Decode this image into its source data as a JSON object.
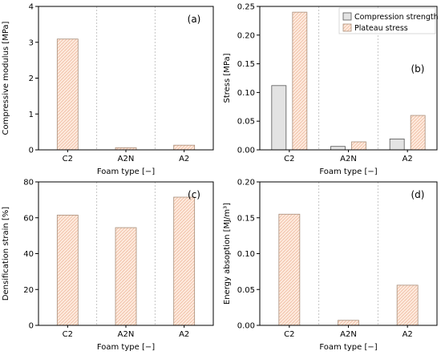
{
  "colors": {
    "compression": "#e3e3e3",
    "plateau": "#fbe3d4",
    "plateau_edge": "#a88e7a",
    "separator": "#b8b8b8"
  },
  "chart_data": [
    {
      "type": "bar",
      "panel_label": "(a)",
      "categories": [
        "C2",
        "A2N",
        "A2"
      ],
      "series": [
        {
          "name": "",
          "values": [
            3.09,
            0.06,
            0.13
          ],
          "style": "plateau"
        }
      ],
      "xlabel": "Foam type [−]",
      "ylabel": "Compressive modulus [MPa]",
      "ylim": [
        0,
        4
      ],
      "yticks": [
        "0",
        "1",
        "2",
        "3",
        "4"
      ],
      "legend": null
    },
    {
      "type": "bar",
      "panel_label": "(b)",
      "categories": [
        "C2",
        "A2N",
        "A2"
      ],
      "series": [
        {
          "name": "Compression strength",
          "values": [
            0.112,
            0.006,
            0.019
          ],
          "style": "compression"
        },
        {
          "name": "Plateau stress",
          "values": [
            0.24,
            0.014,
            0.06
          ],
          "style": "plateau"
        }
      ],
      "xlabel": "Foam type [−]",
      "ylabel": "Stress [MPa]",
      "ylim": [
        0,
        0.25
      ],
      "yticks": [
        "0.00",
        "0.05",
        "0.10",
        "0.15",
        "0.20",
        "0.25"
      ],
      "legend": "top-right"
    },
    {
      "type": "bar",
      "panel_label": "(c)",
      "categories": [
        "C2",
        "A2N",
        "A2"
      ],
      "series": [
        {
          "name": "",
          "values": [
            61.5,
            54.5,
            71.5
          ],
          "style": "plateau"
        }
      ],
      "xlabel": "Foam type [−]",
      "ylabel": "Densification strain [%]",
      "ylim": [
        0,
        80
      ],
      "yticks": [
        "0",
        "20",
        "40",
        "60",
        "80"
      ],
      "legend": null
    },
    {
      "type": "bar",
      "panel_label": "(d)",
      "categories": [
        "C2",
        "A2N",
        "A2"
      ],
      "series": [
        {
          "name": "",
          "values": [
            0.155,
            0.007,
            0.056
          ],
          "style": "plateau"
        }
      ],
      "xlabel": "Foam type [−]",
      "ylabel": "Energy absoption [MJ/m³]",
      "ylim": [
        0,
        0.2
      ],
      "yticks": [
        "0.00",
        "0.05",
        "0.10",
        "0.15",
        "0.20"
      ],
      "legend": null
    }
  ]
}
